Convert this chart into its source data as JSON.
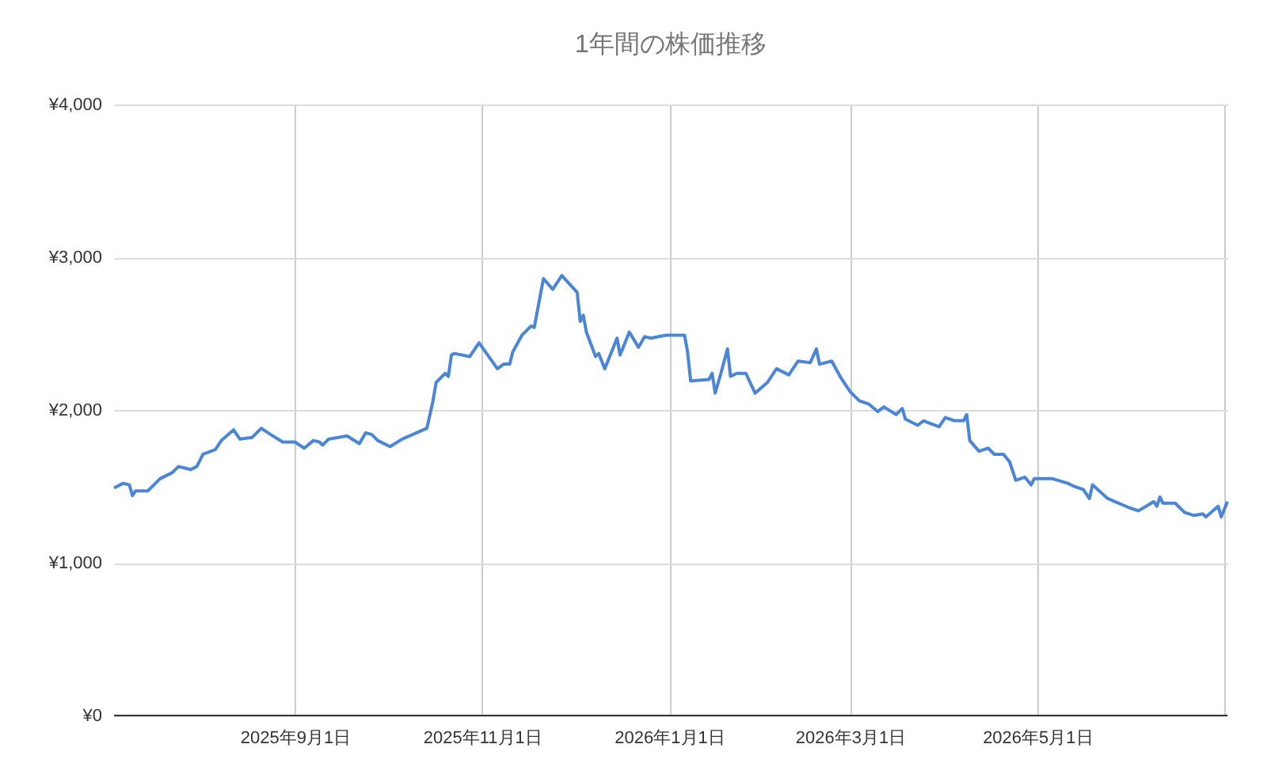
{
  "chart_data": {
    "type": "line",
    "title": "1年間の株価推移",
    "x": [
      "2025-07-04",
      "2025-07-07",
      "2025-07-09",
      "2025-07-10",
      "2025-07-11",
      "2025-07-15",
      "2025-07-19",
      "2025-07-23",
      "2025-07-25",
      "2025-07-29",
      "2025-07-31",
      "2025-08-02",
      "2025-08-06",
      "2025-08-08",
      "2025-08-12",
      "2025-08-14",
      "2025-08-18",
      "2025-08-21",
      "2025-08-24",
      "2025-08-28",
      "2025-09-01",
      "2025-09-04",
      "2025-09-07",
      "2025-09-09",
      "2025-09-10",
      "2025-09-12",
      "2025-09-18",
      "2025-09-22",
      "2025-09-24",
      "2025-09-26",
      "2025-09-28",
      "2025-10-02",
      "2025-10-06",
      "2025-10-14",
      "2025-10-16",
      "2025-10-17",
      "2025-10-20",
      "2025-10-21",
      "2025-10-22",
      "2025-10-23",
      "2025-10-28",
      "2025-10-31",
      "2025-11-06",
      "2025-11-08",
      "2025-11-10",
      "2025-11-11",
      "2025-11-14",
      "2025-11-17",
      "2025-11-18",
      "2025-11-21",
      "2025-11-24",
      "2025-11-27",
      "2025-12-02",
      "2025-12-03",
      "2025-12-04",
      "2025-12-05",
      "2025-12-08",
      "2025-12-09",
      "2025-12-11",
      "2025-12-15",
      "2025-12-16",
      "2025-12-19",
      "2025-12-22",
      "2025-12-24",
      "2025-12-26",
      "2025-12-31",
      "2026-01-06",
      "2026-01-07",
      "2026-01-08",
      "2026-01-14",
      "2026-01-15",
      "2026-01-16",
      "2026-01-18",
      "2026-01-20",
      "2026-01-21",
      "2026-01-23",
      "2026-01-26",
      "2026-01-29",
      "2026-02-02",
      "2026-02-05",
      "2026-02-09",
      "2026-02-12",
      "2026-02-16",
      "2026-02-18",
      "2026-02-19",
      "2026-02-23",
      "2026-02-26",
      "2026-03-01",
      "2026-03-04",
      "2026-03-07",
      "2026-03-10",
      "2026-03-12",
      "2026-03-16",
      "2026-03-18",
      "2026-03-19",
      "2026-03-23",
      "2026-03-25",
      "2026-03-26",
      "2026-03-30",
      "2026-04-01",
      "2026-04-04",
      "2026-04-07",
      "2026-04-08",
      "2026-04-09",
      "2026-04-12",
      "2026-04-15",
      "2026-04-17",
      "2026-04-20",
      "2026-04-22",
      "2026-04-24",
      "2026-04-27",
      "2026-04-29",
      "2026-04-30",
      "2026-05-06",
      "2026-05-11",
      "2026-05-13",
      "2026-05-16",
      "2026-05-18",
      "2026-05-19",
      "2026-05-24",
      "2026-05-31",
      "2026-06-03",
      "2026-06-08",
      "2026-06-09",
      "2026-06-10",
      "2026-06-11",
      "2026-06-15",
      "2026-06-18",
      "2026-06-21",
      "2026-06-24",
      "2026-06-25",
      "2026-06-29",
      "2026-06-30",
      "2026-07-02"
    ],
    "series": [
      {
        "color": "#4a85d6",
        "values": [
          1490,
          1520,
          1510,
          1440,
          1470,
          1470,
          1550,
          1590,
          1630,
          1610,
          1630,
          1710,
          1740,
          1800,
          1870,
          1810,
          1820,
          1880,
          1840,
          1790,
          1790,
          1750,
          1800,
          1790,
          1770,
          1810,
          1830,
          1780,
          1850,
          1840,
          1800,
          1760,
          1810,
          1880,
          2060,
          2180,
          2240,
          2220,
          2360,
          2370,
          2350,
          2440,
          2270,
          2300,
          2300,
          2380,
          2490,
          2550,
          2540,
          2860,
          2790,
          2880,
          2770,
          2580,
          2620,
          2510,
          2350,
          2370,
          2270,
          2470,
          2360,
          2510,
          2410,
          2480,
          2470,
          2490,
          2490,
          2380,
          2190,
          2200,
          2240,
          2110,
          2250,
          2400,
          2220,
          2240,
          2240,
          2110,
          2180,
          2270,
          2230,
          2320,
          2310,
          2400,
          2300,
          2320,
          2210,
          2120,
          2060,
          2040,
          1990,
          2020,
          1970,
          2010,
          1940,
          1900,
          1930,
          1920,
          1890,
          1950,
          1930,
          1930,
          1970,
          1800,
          1730,
          1750,
          1710,
          1710,
          1660,
          1540,
          1560,
          1510,
          1550,
          1550,
          1520,
          1500,
          1480,
          1420,
          1510,
          1420,
          1360,
          1340,
          1400,
          1370,
          1430,
          1390,
          1390,
          1330,
          1310,
          1320,
          1300,
          1370,
          1300,
          1400
        ]
      }
    ],
    "xlim": [
      "2025-07-04",
      "2026-07-02"
    ],
    "xticks": [
      {
        "value": "2025-09-01",
        "label": "2025年9月1日"
      },
      {
        "value": "2025-11-01",
        "label": "2025年11月1日"
      },
      {
        "value": "2026-01-01",
        "label": "2026年1月1日"
      },
      {
        "value": "2026-03-01",
        "label": "2026年3月1日"
      },
      {
        "value": "2026-05-01",
        "label": "2026年5月1日"
      },
      {
        "value": "2026-07-01",
        "label": null
      }
    ],
    "ylim": [
      0,
      4000
    ],
    "yticks": [
      {
        "value": 0,
        "label": "¥0"
      },
      {
        "value": 1000,
        "label": "¥1,000"
      },
      {
        "value": 2000,
        "label": "¥2,000"
      },
      {
        "value": 3000,
        "label": "¥3,000"
      },
      {
        "value": 4000,
        "label": "¥4,000"
      }
    ],
    "grid": true
  }
}
